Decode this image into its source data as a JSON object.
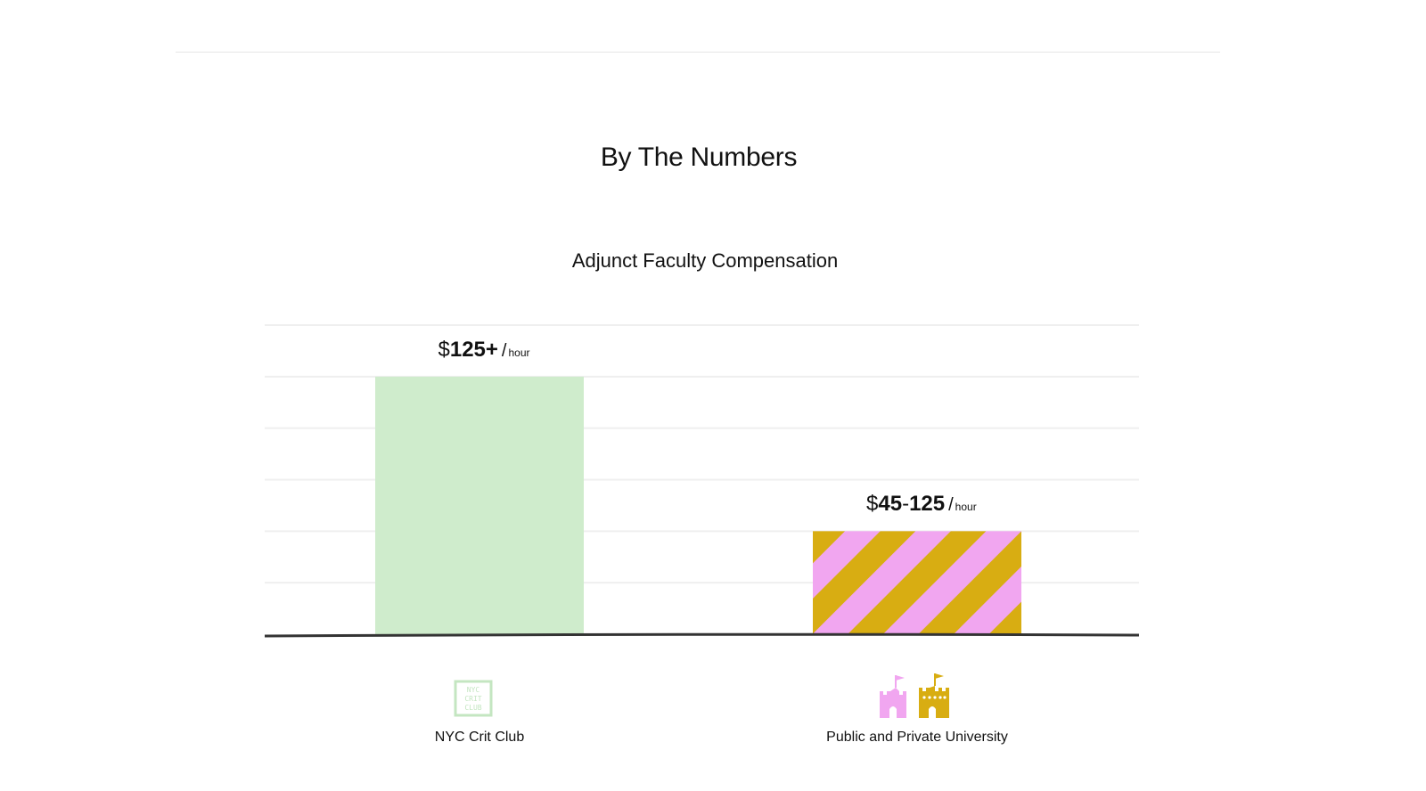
{
  "page": {
    "section_title": "By The Numbers"
  },
  "chart_data": {
    "type": "bar",
    "title": "Adjunct Faculty Compensation",
    "xlabel": "",
    "ylabel": "",
    "unit_label": "hour",
    "ylim": [
      0,
      150
    ],
    "grid": true,
    "categories": [
      "NYC Crit Club",
      "Public and Private University"
    ],
    "values": [
      125,
      50
    ],
    "value_labels": [
      {
        "prefix": "$",
        "bold": "125+",
        "sep": "",
        "bold2": "",
        "slash": "/",
        "unit": "hour"
      },
      {
        "prefix": "$",
        "bold": "45",
        "sep": "-",
        "bold2": "125",
        "slash": "/",
        "unit": "hour"
      }
    ],
    "colors": {
      "bar1": "#cfeccc",
      "stripe_pink": "#f1a6f0",
      "stripe_gold": "#d8ad12",
      "axis": "#333333",
      "grid": "#efefef",
      "icon_green": "#c4e6c1"
    },
    "icons": {
      "cat1": "nyc-crit-club-logo",
      "cat2": "castle-icons"
    },
    "logo_text": [
      "NYC",
      "CRIT",
      "CLUB"
    ]
  }
}
